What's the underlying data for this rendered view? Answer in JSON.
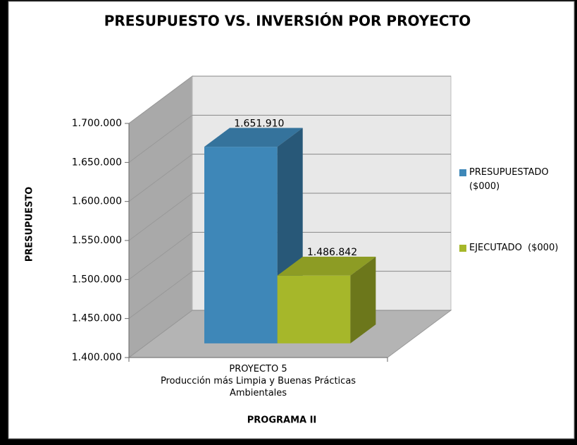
{
  "chart_data": {
    "type": "bar3d",
    "title": "PRESUPUESTO VS. INVERSIÓN POR PROYECTO",
    "y_label": "PRESUPUESTO",
    "x_label": "PROGRAMA II",
    "categories": [
      "PROYECTO 5\nProducción más Limpia y Buenas Prácticas\nAmbientales"
    ],
    "series": [
      {
        "name": "PRESUPUESTADO ($000)",
        "color": "#3e87b8",
        "values": [
          1651910
        ],
        "value_labels": [
          "1.651.910"
        ]
      },
      {
        "name": "EJECUTADO  ($000)",
        "color": "#a6b72a",
        "values": [
          1486842
        ],
        "value_labels": [
          "1.486.842"
        ]
      }
    ],
    "ylim": [
      1400000,
      1700000
    ],
    "yticks": [
      {
        "value": 1400000,
        "label": "1.400.000"
      },
      {
        "value": 1450000,
        "label": "1.450.000"
      },
      {
        "value": 1500000,
        "label": "1.500.000"
      },
      {
        "value": 1550000,
        "label": "1.550.000"
      },
      {
        "value": 1600000,
        "label": "1.600.000"
      },
      {
        "value": 1650000,
        "label": "1.650.000"
      },
      {
        "value": 1700000,
        "label": "1.700.000"
      }
    ],
    "grid": true,
    "legend": "right"
  }
}
